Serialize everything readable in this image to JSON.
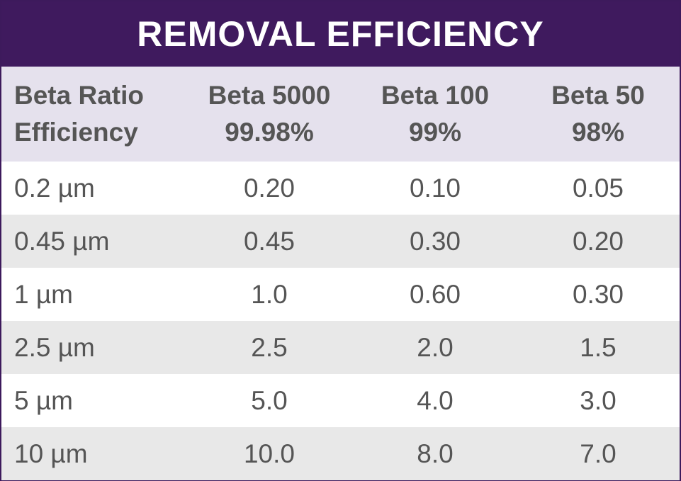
{
  "title": "REMOVAL EFFICIENCY",
  "header": [
    {
      "line1": "Beta Ratio",
      "line2": "Efficiency"
    },
    {
      "line1": "Beta 5000",
      "line2": "99.98%"
    },
    {
      "line1": "Beta 100",
      "line2": "99%"
    },
    {
      "line1": "Beta 50",
      "line2": "98%"
    }
  ],
  "rows": [
    [
      "0.2 µm",
      "0.20",
      "0.10",
      "0.05"
    ],
    [
      "0.45 µm",
      "0.45",
      "0.30",
      "0.20"
    ],
    [
      "1 µm",
      "1.0",
      "0.60",
      "0.30"
    ],
    [
      "2.5 µm",
      "2.5",
      "2.0",
      "1.5"
    ],
    [
      "5 µm",
      "5.0",
      "4.0",
      "3.0"
    ],
    [
      "10 µm",
      "10.0",
      "8.0",
      "7.0"
    ]
  ],
  "colors": {
    "title_bg": "#3f1a5e",
    "header_bg": "#e5e1ed",
    "row_alt_bg": "#e8e8e8",
    "text": "#555555"
  }
}
